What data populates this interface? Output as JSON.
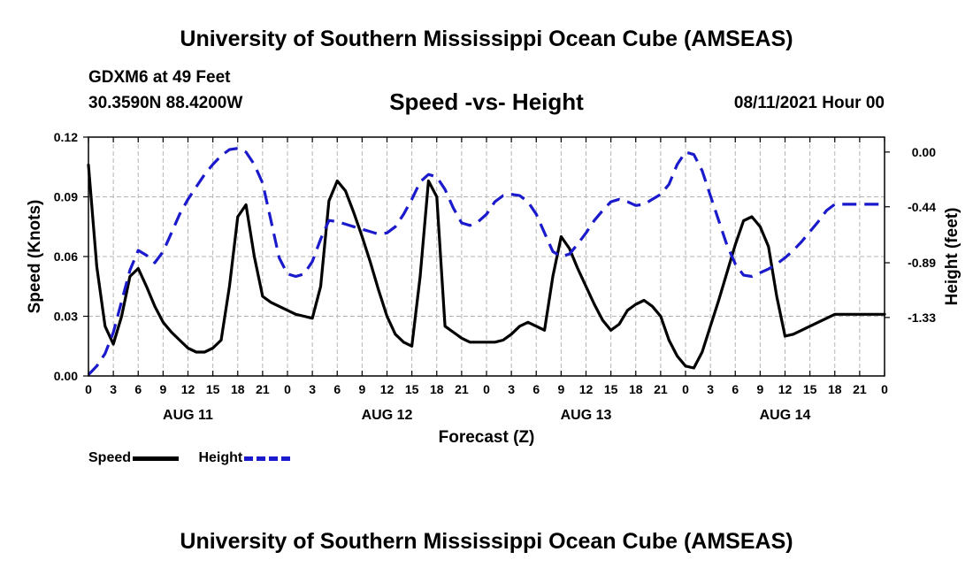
{
  "header": {
    "title": "University of Southern Mississippi Ocean Cube (AMSEAS)",
    "station": "GDXM6 at 49 Feet",
    "coordinates": "30.3590N  88.4200W",
    "subtitle": "Speed -vs- Height",
    "datetime": "08/11/2021 Hour 00"
  },
  "footer": {
    "title": "University of Southern Mississippi Ocean Cube (AMSEAS)"
  },
  "legend": {
    "speed_label": "Speed",
    "height_label": "Height"
  },
  "colors": {
    "speed": "#000000",
    "height": "#1a1acc",
    "grid": "#b4b4b4"
  },
  "chart_data": {
    "type": "line",
    "title": "Speed -vs- Height",
    "xlabel": "Forecast (Z)",
    "ylabel": "Speed (Knots)",
    "ylabel_right": "Height (feet)",
    "xlim": [
      0,
      96
    ],
    "ylim": [
      0,
      0.12
    ],
    "ylim_right": [
      -1.8,
      0.12
    ],
    "grid": true,
    "x_ticks": [
      0,
      3,
      6,
      9,
      12,
      15,
      18,
      21,
      24,
      27,
      30,
      33,
      36,
      39,
      42,
      45,
      48,
      51,
      54,
      57,
      60,
      63,
      66,
      69,
      72,
      75,
      78,
      81,
      84,
      87,
      90,
      93,
      96
    ],
    "x_tick_labels": [
      "0",
      "3",
      "6",
      "9",
      "12",
      "15",
      "18",
      "21",
      "0",
      "3",
      "6",
      "9",
      "12",
      "15",
      "18",
      "21",
      "0",
      "3",
      "6",
      "9",
      "12",
      "15",
      "18",
      "21",
      "0",
      "3",
      "6",
      "9",
      "12",
      "15",
      "18",
      "21",
      "0"
    ],
    "day_labels": [
      {
        "x": 12,
        "label": "AUG 11"
      },
      {
        "x": 36,
        "label": "AUG 12"
      },
      {
        "x": 60,
        "label": "AUG 13"
      },
      {
        "x": 84,
        "label": "AUG 14"
      }
    ],
    "y_ticks": [
      0.0,
      0.03,
      0.06,
      0.09,
      0.12
    ],
    "y_tick_labels": [
      "0.00",
      "0.03",
      "0.06",
      "0.09",
      "0.12"
    ],
    "y_ticks_right": [
      0.0,
      -0.44,
      -0.89,
      -1.33
    ],
    "y_tick_labels_right": [
      "0.00",
      "-0.44",
      "-0.89",
      "-1.33"
    ],
    "series": [
      {
        "name": "Speed",
        "axis": "left",
        "style": "solid",
        "x": [
          0,
          1,
          2,
          3,
          4,
          5,
          6,
          7,
          8,
          9,
          10,
          11,
          12,
          13,
          14,
          15,
          16,
          17,
          18,
          19,
          20,
          21,
          22,
          23,
          24,
          25,
          26,
          27,
          28,
          29,
          30,
          31,
          32,
          33,
          34,
          35,
          36,
          37,
          38,
          39,
          40,
          41,
          42,
          43,
          44,
          45,
          46,
          47,
          48,
          49,
          50,
          51,
          52,
          53,
          54,
          55,
          56,
          57,
          58,
          59,
          60,
          61,
          62,
          63,
          64,
          65,
          66,
          67,
          68,
          69,
          70,
          71,
          72,
          73,
          74,
          75,
          76,
          77,
          78,
          79,
          80,
          81,
          82,
          83,
          84,
          85,
          86,
          87,
          88,
          89,
          90,
          91,
          92,
          93,
          94,
          95,
          96
        ],
        "values": [
          0.106,
          0.055,
          0.025,
          0.016,
          0.03,
          0.05,
          0.054,
          0.045,
          0.035,
          0.027,
          0.022,
          0.018,
          0.014,
          0.012,
          0.012,
          0.014,
          0.018,
          0.045,
          0.08,
          0.086,
          0.06,
          0.04,
          0.037,
          0.035,
          0.033,
          0.031,
          0.03,
          0.029,
          0.045,
          0.088,
          0.098,
          0.093,
          0.082,
          0.07,
          0.057,
          0.043,
          0.03,
          0.021,
          0.017,
          0.015,
          0.05,
          0.098,
          0.09,
          0.025,
          0.022,
          0.019,
          0.017,
          0.017,
          0.017,
          0.017,
          0.018,
          0.021,
          0.025,
          0.027,
          0.025,
          0.023,
          0.05,
          0.07,
          0.064,
          0.054,
          0.045,
          0.036,
          0.028,
          0.023,
          0.026,
          0.033,
          0.036,
          0.038,
          0.035,
          0.03,
          0.018,
          0.01,
          0.005,
          0.004,
          0.012,
          0.025,
          0.038,
          0.052,
          0.066,
          0.078,
          0.08,
          0.075,
          0.065,
          0.04,
          0.02,
          0.021,
          0.023,
          0.025,
          0.027,
          0.029,
          0.031,
          0.031,
          0.031,
          0.031,
          0.031,
          0.031,
          0.031
        ]
      },
      {
        "name": "Height",
        "axis": "right",
        "style": "dashed",
        "x": [
          0,
          1,
          2,
          3,
          4,
          5,
          6,
          7,
          8,
          9,
          10,
          11,
          12,
          13,
          14,
          15,
          16,
          17,
          18,
          19,
          20,
          21,
          22,
          23,
          24,
          25,
          26,
          27,
          28,
          29,
          30,
          31,
          32,
          33,
          34,
          35,
          36,
          37,
          38,
          39,
          40,
          41,
          42,
          43,
          44,
          45,
          46,
          47,
          48,
          49,
          50,
          51,
          52,
          53,
          54,
          55,
          56,
          57,
          58,
          59,
          60,
          61,
          62,
          63,
          64,
          65,
          66,
          67,
          68,
          69,
          70,
          71,
          72,
          73,
          74,
          75,
          76,
          77,
          78,
          79,
          80,
          81,
          82,
          83,
          84,
          85,
          86,
          87,
          88,
          89,
          90,
          91,
          92,
          93,
          94,
          95,
          96
        ],
        "values": [
          -1.79,
          -1.72,
          -1.62,
          -1.45,
          -1.2,
          -0.95,
          -0.79,
          -0.83,
          -0.89,
          -0.8,
          -0.65,
          -0.5,
          -0.38,
          -0.28,
          -0.18,
          -0.1,
          -0.03,
          0.02,
          0.03,
          0.0,
          -0.1,
          -0.25,
          -0.55,
          -0.85,
          -0.98,
          -1.0,
          -0.98,
          -0.88,
          -0.7,
          -0.55,
          -0.56,
          -0.58,
          -0.6,
          -0.62,
          -0.64,
          -0.66,
          -0.65,
          -0.6,
          -0.5,
          -0.38,
          -0.24,
          -0.18,
          -0.2,
          -0.3,
          -0.45,
          -0.57,
          -0.59,
          -0.56,
          -0.5,
          -0.4,
          -0.35,
          -0.34,
          -0.35,
          -0.4,
          -0.5,
          -0.65,
          -0.8,
          -0.84,
          -0.82,
          -0.74,
          -0.65,
          -0.55,
          -0.47,
          -0.4,
          -0.38,
          -0.4,
          -0.43,
          -0.42,
          -0.38,
          -0.34,
          -0.26,
          -0.1,
          0.0,
          -0.02,
          -0.15,
          -0.35,
          -0.55,
          -0.75,
          -0.9,
          -0.99,
          -1.0,
          -0.97,
          -0.94,
          -0.9,
          -0.85,
          -0.79,
          -0.72,
          -0.64,
          -0.56,
          -0.47,
          -0.42,
          -0.42,
          -0.42,
          -0.42,
          -0.42,
          -0.42,
          -0.42
        ]
      }
    ]
  }
}
